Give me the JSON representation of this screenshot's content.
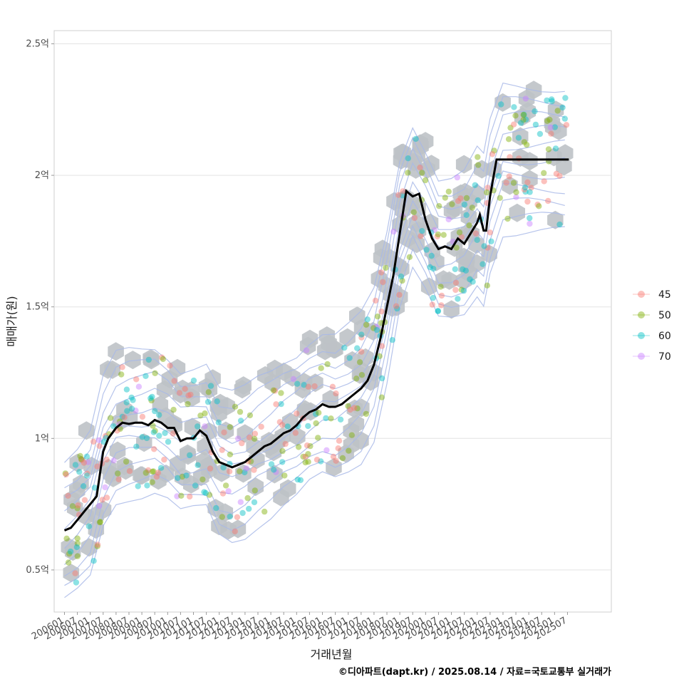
{
  "chart_data": {
    "type": "scatter",
    "xlabel": "거래년월",
    "ylabel": "매매가(원)",
    "caption": "©디아파트(dapt.kr) / 2025.08.14 / 자료=국토교통부 실거래가",
    "y_ticks": [
      {
        "value": 0.5,
        "label": "0.5억"
      },
      {
        "value": 1.0,
        "label": "1억"
      },
      {
        "value": 1.5,
        "label": "1.5억"
      },
      {
        "value": 2.0,
        "label": "2억"
      },
      {
        "value": 2.5,
        "label": "2.5억"
      }
    ],
    "x_ticks": [
      "200601",
      "200607",
      "200701",
      "200707",
      "200801",
      "200807",
      "200901",
      "200907",
      "201001",
      "201007",
      "201101",
      "201107",
      "201201",
      "201207",
      "201301",
      "201307",
      "201401",
      "201407",
      "201501",
      "201507",
      "201601",
      "201607",
      "201701",
      "201707",
      "201801",
      "201807",
      "201901",
      "201907",
      "202001",
      "202007",
      "202101",
      "202107",
      "202201",
      "202207",
      "202301",
      "202307",
      "202401",
      "202407",
      "202501",
      "202507"
    ],
    "xlim": [
      2005.6,
      2027.2
    ],
    "ylim": [
      0.34,
      2.55
    ],
    "legend": {
      "position": "right",
      "items": [
        {
          "label": "45",
          "color": "#F8766D"
        },
        {
          "label": "50",
          "color": "#7CAE00"
        },
        {
          "label": "60",
          "color": "#00BFC4"
        },
        {
          "label": "70",
          "color": "#C77CFF"
        }
      ]
    },
    "hex_color": "#BEC2C6",
    "contour_color": "#A8B8E8",
    "trend_line": {
      "name": "moving average",
      "color": "#000000",
      "x": [
        2006.0,
        2006.25,
        2006.5,
        2006.75,
        2007.0,
        2007.25,
        2007.5,
        2007.7,
        2008.0,
        2008.25,
        2008.5,
        2008.75,
        2009.0,
        2009.25,
        2009.5,
        2009.75,
        2010.0,
        2010.25,
        2010.5,
        2010.75,
        2011.0,
        2011.25,
        2011.5,
        2011.75,
        2012.0,
        2012.25,
        2012.5,
        2012.75,
        2013.0,
        2013.25,
        2013.5,
        2013.75,
        2014.0,
        2014.25,
        2014.5,
        2014.75,
        2015.0,
        2015.25,
        2015.5,
        2015.75,
        2016.0,
        2016.25,
        2016.5,
        2016.75,
        2017.0,
        2017.25,
        2017.5,
        2017.75,
        2018.0,
        2018.25,
        2018.5,
        2018.75,
        2019.0,
        2019.25,
        2019.5,
        2019.75,
        2020.0,
        2020.25,
        2020.5,
        2020.75,
        2021.0,
        2021.25,
        2021.5,
        2021.75,
        2022.0,
        2022.1,
        2022.25,
        2022.35,
        2022.5,
        2022.75,
        2023.0,
        2023.25,
        2023.5,
        2023.75,
        2024.0,
        2024.25,
        2024.5,
        2024.75,
        2025.0,
        2025.25,
        2025.4,
        2025.55
      ],
      "y": [
        0.65,
        0.66,
        0.69,
        0.72,
        0.75,
        0.78,
        0.95,
        1.0,
        1.04,
        1.06,
        1.055,
        1.06,
        1.06,
        1.05,
        1.07,
        1.06,
        1.04,
        1.04,
        0.99,
        1.0,
        1.0,
        1.03,
        1.01,
        0.95,
        0.91,
        0.9,
        0.89,
        0.9,
        0.91,
        0.93,
        0.95,
        0.97,
        0.98,
        1.0,
        1.02,
        1.03,
        1.05,
        1.08,
        1.1,
        1.11,
        1.13,
        1.12,
        1.12,
        1.13,
        1.15,
        1.17,
        1.19,
        1.22,
        1.28,
        1.38,
        1.5,
        1.62,
        1.78,
        1.94,
        1.92,
        1.93,
        1.83,
        1.76,
        1.72,
        1.73,
        1.72,
        1.76,
        1.74,
        1.78,
        1.82,
        1.85,
        1.79,
        1.79,
        1.92,
        2.06,
        2.06,
        2.06,
        2.06,
        2.06,
        2.06,
        2.06,
        2.06,
        2.06,
        2.06,
        2.06,
        2.06,
        2.06
      ]
    }
  }
}
